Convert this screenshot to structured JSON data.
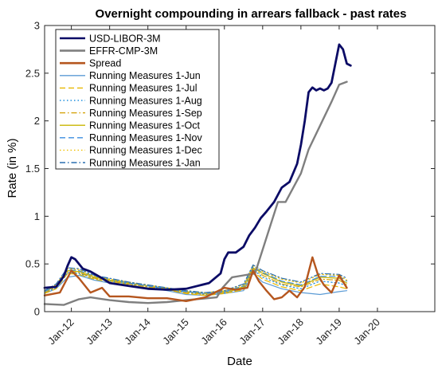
{
  "chart_data": {
    "type": "line",
    "title": "Overnight compounding in arrears fallback - past rates",
    "xlabel": "Date",
    "ylabel": "Rate (in %)",
    "xlim": [
      2011.3,
      2021.5
    ],
    "ylim": [
      0,
      3
    ],
    "x_tick_values": [
      2012,
      2013,
      2014,
      2015,
      2016,
      2017,
      2018,
      2019,
      2020
    ],
    "x_tick_labels": [
      "Jan-12",
      "Jan-13",
      "Jan-14",
      "Jan-15",
      "Jan-16",
      "Jan-17",
      "Jan-18",
      "Jan-19",
      "Jan-20"
    ],
    "y_ticks": [
      0,
      0.5,
      1,
      1.5,
      2,
      2.5,
      3
    ],
    "y_tick_labels": [
      "0",
      "0.5",
      "1",
      "1.5",
      "2",
      "2.5",
      "3"
    ],
    "grid": false,
    "legend_position": "top-left",
    "series": [
      {
        "name": "USD-LIBOR-3M",
        "color": "#0b0b66",
        "dash": "solid",
        "width": 2.8,
        "x": [
          2011.3,
          2011.6,
          2011.8,
          2011.9,
          2012.0,
          2012.1,
          2012.3,
          2012.5,
          2012.8,
          2013.0,
          2013.5,
          2014.0,
          2014.5,
          2015.0,
          2015.3,
          2015.6,
          2015.9,
          2016.0,
          2016.1,
          2016.3,
          2016.5,
          2016.65,
          2016.8,
          2016.95,
          2017.1,
          2017.3,
          2017.5,
          2017.7,
          2017.9,
          2018.0,
          2018.1,
          2018.2,
          2018.3,
          2018.4,
          2018.5,
          2018.6,
          2018.7,
          2018.8,
          2018.9,
          2019.0,
          2019.1,
          2019.2,
          2019.3
        ],
        "y": [
          0.25,
          0.26,
          0.37,
          0.48,
          0.57,
          0.55,
          0.45,
          0.42,
          0.35,
          0.3,
          0.27,
          0.24,
          0.23,
          0.24,
          0.27,
          0.3,
          0.4,
          0.55,
          0.62,
          0.62,
          0.68,
          0.8,
          0.88,
          0.98,
          1.05,
          1.15,
          1.3,
          1.36,
          1.55,
          1.75,
          2.0,
          2.3,
          2.35,
          2.32,
          2.34,
          2.32,
          2.34,
          2.4,
          2.6,
          2.8,
          2.75,
          2.6,
          2.58
        ]
      },
      {
        "name": "EFFR-CMP-3M",
        "color": "#7f7f7f",
        "dash": "solid",
        "width": 2.4,
        "x": [
          2011.3,
          2011.8,
          2012.2,
          2012.5,
          2013.0,
          2013.5,
          2014.0,
          2014.5,
          2015.0,
          2015.8,
          2015.95,
          2016.2,
          2016.5,
          2016.8,
          2017.0,
          2017.2,
          2017.4,
          2017.6,
          2018.0,
          2018.2,
          2018.5,
          2018.8,
          2019.0,
          2019.2
        ],
        "y": [
          0.08,
          0.07,
          0.13,
          0.15,
          0.12,
          0.1,
          0.09,
          0.1,
          0.12,
          0.15,
          0.25,
          0.36,
          0.38,
          0.4,
          0.65,
          0.9,
          1.15,
          1.15,
          1.45,
          1.7,
          1.95,
          2.2,
          2.38,
          2.41
        ]
      },
      {
        "name": "Spread",
        "color": "#b5561e",
        "dash": "solid",
        "width": 2.4,
        "x": [
          2011.3,
          2011.7,
          2012.0,
          2012.2,
          2012.5,
          2012.8,
          2013.0,
          2013.5,
          2014.0,
          2014.5,
          2015.0,
          2015.5,
          2016.0,
          2016.3,
          2016.6,
          2016.75,
          2016.9,
          2017.1,
          2017.3,
          2017.5,
          2017.7,
          2017.9,
          2018.1,
          2018.3,
          2018.45,
          2018.6,
          2018.8,
          2019.0,
          2019.2
        ],
        "y": [
          0.17,
          0.2,
          0.43,
          0.35,
          0.2,
          0.25,
          0.16,
          0.16,
          0.14,
          0.14,
          0.11,
          0.15,
          0.25,
          0.23,
          0.25,
          0.43,
          0.32,
          0.22,
          0.13,
          0.15,
          0.22,
          0.15,
          0.26,
          0.57,
          0.38,
          0.28,
          0.2,
          0.38,
          0.25
        ]
      },
      {
        "name": "Running Measures 1-Jun",
        "color": "#5b9bd5",
        "dash": "solid",
        "width": 1.2,
        "x": [
          2011.3,
          2011.6,
          2011.9,
          2012.2,
          2012.6,
          2013.0,
          2013.5,
          2014.0,
          2014.5,
          2015.0,
          2015.5,
          2016.0,
          2016.5,
          2016.75,
          2017.0,
          2017.5,
          2018.0,
          2018.5,
          2019.0,
          2019.2
        ],
        "y": [
          0.19,
          0.24,
          0.36,
          0.38,
          0.33,
          0.3,
          0.27,
          0.25,
          0.22,
          0.18,
          0.17,
          0.19,
          0.22,
          0.4,
          0.31,
          0.24,
          0.2,
          0.18,
          0.21,
          0.22
        ]
      },
      {
        "name": "Running Measures 1-Jul",
        "color": "#e8b800",
        "dash": "dash",
        "width": 1.2,
        "x": [
          2011.3,
          2011.6,
          2011.9,
          2012.2,
          2012.6,
          2013.0,
          2013.5,
          2014.0,
          2014.5,
          2015.0,
          2015.5,
          2016.0,
          2016.5,
          2016.75,
          2017.0,
          2017.5,
          2018.0,
          2018.5,
          2019.0,
          2019.2
        ],
        "y": [
          0.19,
          0.24,
          0.4,
          0.39,
          0.34,
          0.31,
          0.28,
          0.25,
          0.23,
          0.19,
          0.17,
          0.19,
          0.23,
          0.42,
          0.34,
          0.26,
          0.22,
          0.29,
          0.26,
          0.24
        ]
      },
      {
        "name": "Running Measures 1-Aug",
        "color": "#1f8fdd",
        "dash": "dot",
        "width": 1.2,
        "x": [
          2011.3,
          2011.6,
          2011.9,
          2012.2,
          2012.6,
          2013.0,
          2013.5,
          2014.0,
          2014.5,
          2015.0,
          2015.5,
          2016.0,
          2016.5,
          2016.75,
          2017.0,
          2017.5,
          2018.0,
          2018.5,
          2019.0,
          2019.2
        ],
        "y": [
          0.2,
          0.25,
          0.41,
          0.4,
          0.35,
          0.32,
          0.29,
          0.26,
          0.23,
          0.2,
          0.18,
          0.2,
          0.24,
          0.44,
          0.36,
          0.28,
          0.24,
          0.32,
          0.3,
          0.27
        ]
      },
      {
        "name": "Running Measures 1-Sep",
        "color": "#d4a20a",
        "dash": "dashdot",
        "width": 1.2,
        "x": [
          2011.3,
          2011.6,
          2011.9,
          2012.2,
          2012.6,
          2013.0,
          2013.5,
          2014.0,
          2014.5,
          2015.0,
          2015.5,
          2016.0,
          2016.5,
          2016.75,
          2017.0,
          2017.5,
          2018.0,
          2018.5,
          2019.0,
          2019.2
        ],
        "y": [
          0.2,
          0.26,
          0.42,
          0.41,
          0.35,
          0.32,
          0.29,
          0.26,
          0.23,
          0.2,
          0.18,
          0.2,
          0.25,
          0.45,
          0.38,
          0.29,
          0.26,
          0.34,
          0.33,
          0.28
        ]
      },
      {
        "name": "Running Measures 1-Oct",
        "color": "#c8b400",
        "dash": "solid",
        "width": 1.2,
        "x": [
          2011.3,
          2011.6,
          2011.9,
          2012.2,
          2012.6,
          2013.0,
          2013.5,
          2014.0,
          2014.5,
          2015.0,
          2015.5,
          2016.0,
          2016.5,
          2016.75,
          2017.0,
          2017.5,
          2018.0,
          2018.5,
          2019.0,
          2019.2
        ],
        "y": [
          0.21,
          0.27,
          0.43,
          0.42,
          0.36,
          0.33,
          0.3,
          0.27,
          0.24,
          0.21,
          0.19,
          0.21,
          0.26,
          0.46,
          0.4,
          0.31,
          0.27,
          0.36,
          0.35,
          0.3
        ]
      },
      {
        "name": "Running Measures 1-Nov",
        "color": "#3b8de0",
        "dash": "dash",
        "width": 1.2,
        "x": [
          2011.3,
          2011.6,
          2011.9,
          2012.2,
          2012.6,
          2013.0,
          2013.5,
          2014.0,
          2014.5,
          2015.0,
          2015.5,
          2016.0,
          2016.5,
          2016.75,
          2017.0,
          2017.5,
          2018.0,
          2018.5,
          2019.0,
          2019.2
        ],
        "y": [
          0.21,
          0.27,
          0.44,
          0.43,
          0.37,
          0.34,
          0.3,
          0.27,
          0.24,
          0.21,
          0.19,
          0.21,
          0.27,
          0.47,
          0.41,
          0.32,
          0.28,
          0.37,
          0.37,
          0.32
        ]
      },
      {
        "name": "Running Measures 1-Dec",
        "color": "#f0c000",
        "dash": "dot",
        "width": 1.2,
        "x": [
          2011.3,
          2011.6,
          2011.9,
          2012.2,
          2012.6,
          2013.0,
          2013.5,
          2014.0,
          2014.5,
          2015.0,
          2015.5,
          2016.0,
          2016.5,
          2016.75,
          2017.0,
          2017.5,
          2018.0,
          2018.5,
          2019.0,
          2019.2
        ],
        "y": [
          0.22,
          0.28,
          0.45,
          0.44,
          0.37,
          0.34,
          0.31,
          0.28,
          0.25,
          0.22,
          0.2,
          0.22,
          0.28,
          0.48,
          0.42,
          0.34,
          0.3,
          0.39,
          0.38,
          0.33
        ]
      },
      {
        "name": "Running Measures 1-Jan",
        "color": "#2a6fb0",
        "dash": "dashdot",
        "width": 1.2,
        "x": [
          2011.3,
          2011.6,
          2011.9,
          2012.2,
          2012.6,
          2013.0,
          2013.5,
          2014.0,
          2014.5,
          2015.0,
          2015.5,
          2016.0,
          2016.5,
          2016.75,
          2017.0,
          2017.5,
          2018.0,
          2018.5,
          2019.0,
          2019.2
        ],
        "y": [
          0.22,
          0.29,
          0.46,
          0.45,
          0.38,
          0.35,
          0.31,
          0.28,
          0.25,
          0.22,
          0.2,
          0.22,
          0.29,
          0.49,
          0.43,
          0.35,
          0.31,
          0.4,
          0.39,
          0.35
        ]
      }
    ]
  }
}
